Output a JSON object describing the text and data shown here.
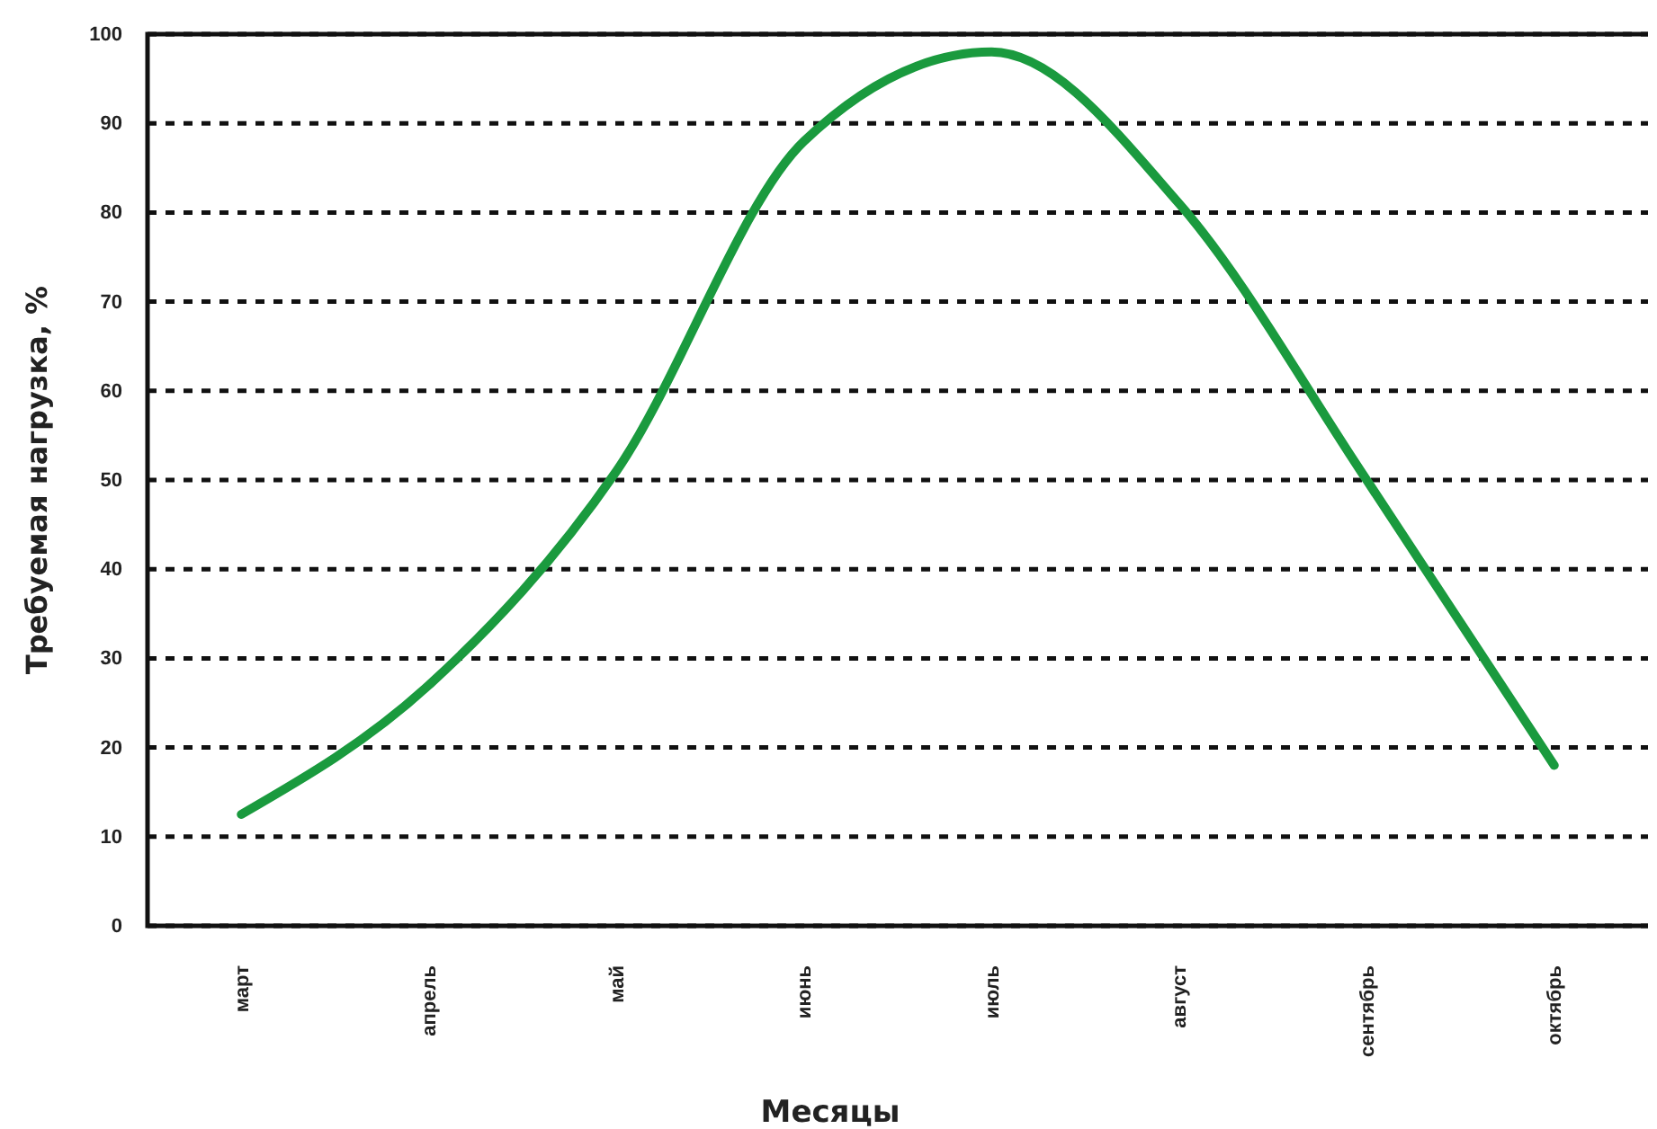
{
  "chart_data": {
    "type": "line",
    "xlabel": "Месяцы",
    "ylabel": "Требуемая нагрузка, %",
    "categories": [
      "март",
      "апрель",
      "май",
      "июнь",
      "июль",
      "август",
      "сентябрь",
      "октябрь"
    ],
    "series": [
      {
        "color": "#1a9a3e",
        "values": [
          12.5,
          27,
          51,
          88,
          98,
          81,
          50,
          18
        ]
      }
    ],
    "ylim": [
      0,
      100
    ],
    "yticks": [
      0,
      10,
      20,
      30,
      40,
      50,
      60,
      70,
      80,
      90,
      100
    ],
    "grid": "y",
    "line_style": "solid",
    "marker": "none"
  }
}
